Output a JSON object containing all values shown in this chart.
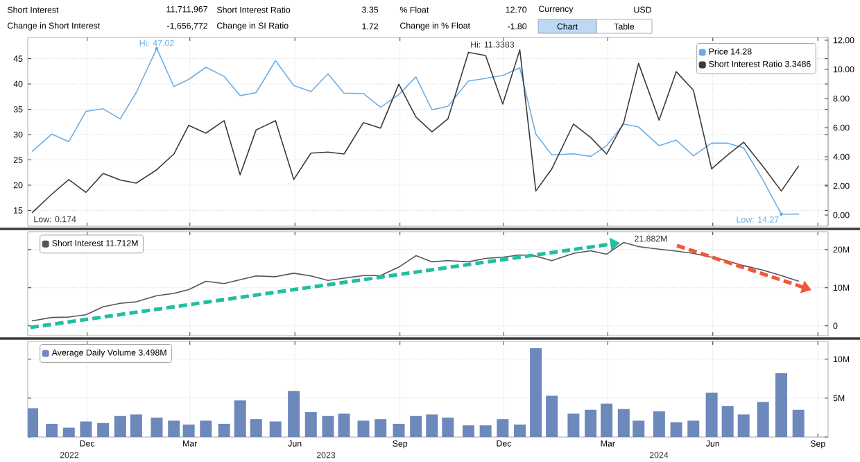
{
  "chart_data": [
    {
      "type": "other",
      "annotations": [
        "Short Interest",
        "11,711,967",
        "Short Interest Ratio",
        "3.35",
        "% Float",
        "12.70",
        "Currency",
        "USD",
        "Change in Short Interest",
        "-1,656,772",
        "Change in SI Ratio",
        "1.72",
        "Change in % Float",
        "-1.80",
        "Chart",
        "Table"
      ]
    },
    {
      "type": "line",
      "x": [
        "2022-10-14",
        "2022-10-31",
        "2022-11-15",
        "2022-11-30",
        "2022-12-15",
        "2022-12-30",
        "2023-01-13",
        "2023-01-31",
        "2023-02-15",
        "2023-02-28",
        "2023-03-15",
        "2023-03-31",
        "2023-04-14",
        "2023-04-28",
        "2023-05-15",
        "2023-05-31",
        "2023-06-15",
        "2023-06-30",
        "2023-07-14",
        "2023-07-31",
        "2023-08-15",
        "2023-08-31",
        "2023-09-15",
        "2023-09-29",
        "2023-10-13",
        "2023-10-31",
        "2023-11-15",
        "2023-11-30",
        "2023-12-15",
        "2023-12-29",
        "2024-01-12",
        "2024-01-31",
        "2024-02-15",
        "2024-02-29",
        "2024-03-15",
        "2024-03-28",
        "2024-04-15",
        "2024-04-30",
        "2024-05-15",
        "2024-05-31",
        "2024-06-14",
        "2024-06-28",
        "2024-07-15",
        "2024-07-31",
        "2024-08-15"
      ],
      "series": [
        {
          "name": "Price 14.28",
          "color": "#6aaee8",
          "values": [
            26.7,
            30.1,
            28.6,
            34.6,
            35.1,
            33.1,
            38.3,
            47.02,
            39.5,
            40.9,
            43.3,
            41.5,
            37.7,
            38.3,
            44.6,
            39.7,
            38.5,
            42.0,
            38.2,
            38.1,
            35.4,
            37.9,
            41.4,
            34.9,
            35.6,
            40.6,
            41.1,
            41.7,
            43.2,
            30.1,
            26.0,
            26.2,
            25.7,
            27.8,
            32.1,
            31.5,
            27.8,
            28.9,
            25.8,
            28.3,
            28.3,
            27.4,
            21.0,
            14.27,
            14.28
          ]
        },
        {
          "name": "Short Interest Ratio 3.3486",
          "color": "#3a3a3a",
          "axis": "y2",
          "values": [
            0.174,
            1.43,
            2.44,
            1.56,
            2.86,
            2.41,
            2.19,
            3.11,
            4.19,
            6.16,
            5.62,
            6.48,
            2.76,
            5.84,
            6.48,
            2.44,
            4.25,
            4.32,
            4.19,
            6.35,
            5.97,
            8.98,
            6.73,
            5.71,
            6.6,
            11.17,
            10.95,
            7.62,
            11.3383,
            1.65,
            3.17,
            6.25,
            5.33,
            4.19,
            6.35,
            10.41,
            6.51,
            9.84,
            8.57,
            3.17,
            4.13,
            5.0,
            3.33,
            1.65,
            3.3486
          ]
        }
      ],
      "xlim": [
        "2022-10-10",
        "2024-09-10"
      ],
      "xticks": [
        {
          "value": "2022-12-01",
          "label": null
        },
        {
          "value": "2023-03-01",
          "label": null
        },
        {
          "value": "2023-06-01",
          "label": null
        },
        {
          "value": "2023-09-01",
          "label": null
        },
        {
          "value": "2023-12-01",
          "label": null
        },
        {
          "value": "2024-03-01",
          "label": null
        },
        {
          "value": "2024-06-01",
          "label": null
        },
        {
          "value": "2024-09-01",
          "label": null
        }
      ],
      "ylim": [
        11.9,
        49.2
      ],
      "yticks": [
        15,
        20,
        25,
        30,
        35,
        40,
        45
      ],
      "y2lim": [
        -0.76,
        12.19
      ],
      "y2ticks": [
        {
          "value": 0,
          "label": "0.00"
        },
        {
          "value": 2,
          "label": "2.00"
        },
        {
          "value": 4,
          "label": "4.00"
        },
        {
          "value": 6,
          "label": "6.00"
        },
        {
          "value": 8,
          "label": "8.00"
        },
        {
          "value": 10,
          "label": "10.00"
        },
        {
          "value": 12,
          "label": "12.00"
        }
      ],
      "annotations": [
        {
          "text": "Hi: 47.02",
          "x": "2023-01-31",
          "y": 47.02
        },
        {
          "text": "Low: 14.27",
          "x": "2024-07-31",
          "y": 14.27
        },
        "Hi: 11.3383",
        "Low: 0.174"
      ],
      "grid": true,
      "legend": "top right",
      "tick_labels": "y"
    },
    {
      "type": "line",
      "x": [
        "2022-10-14",
        "2022-10-31",
        "2022-11-15",
        "2022-11-30",
        "2022-12-15",
        "2022-12-30",
        "2023-01-13",
        "2023-01-31",
        "2023-02-15",
        "2023-02-28",
        "2023-03-15",
        "2023-03-31",
        "2023-04-14",
        "2023-04-28",
        "2023-05-15",
        "2023-05-31",
        "2023-06-15",
        "2023-06-30",
        "2023-07-14",
        "2023-07-31",
        "2023-08-15",
        "2023-08-31",
        "2023-09-15",
        "2023-09-29",
        "2023-10-13",
        "2023-10-31",
        "2023-11-15",
        "2023-11-30",
        "2023-12-15",
        "2023-12-29",
        "2024-01-12",
        "2024-01-31",
        "2024-02-15",
        "2024-02-29",
        "2024-03-15",
        "2024-03-28",
        "2024-04-15",
        "2024-04-30",
        "2024-05-15",
        "2024-05-31",
        "2024-06-14",
        "2024-06-28",
        "2024-07-15",
        "2024-07-31",
        "2024-08-15"
      ],
      "series": [
        {
          "name": "Short Interest 11.712M",
          "color": "#555555",
          "axis": "y2",
          "values": [
            1.3,
            2.2,
            2.3,
            2.9,
            5.0,
            5.9,
            6.3,
            7.9,
            8.5,
            9.5,
            11.7,
            11.1,
            12.1,
            13.1,
            12.9,
            13.8,
            13.1,
            11.9,
            12.5,
            13.2,
            13.2,
            15.4,
            18.4,
            16.8,
            17.1,
            16.8,
            17.7,
            18.0,
            18.6,
            18.3,
            17.1,
            19.0,
            19.7,
            18.8,
            21.882,
            20.8,
            20.1,
            19.6,
            19.0,
            18.0,
            17.0,
            15.8,
            14.6,
            13.2,
            11.712
          ]
        }
      ],
      "xlim": [
        "2022-10-10",
        "2024-09-10"
      ],
      "xticks": [
        {
          "value": "2022-12-01",
          "label": null
        },
        {
          "value": "2023-03-01",
          "label": null
        },
        {
          "value": "2023-06-01",
          "label": null
        },
        {
          "value": "2023-09-01",
          "label": null
        },
        {
          "value": "2023-12-01",
          "label": null
        },
        {
          "value": "2024-03-01",
          "label": null
        },
        {
          "value": "2024-06-01",
          "label": null
        },
        {
          "value": "2024-09-01",
          "label": null
        }
      ],
      "y2lim": [
        -2.6,
        24.7
      ],
      "y2ticks": [
        0,
        {
          "value": 10,
          "label": "10M"
        },
        {
          "value": 20,
          "label": "20M"
        }
      ],
      "annotations": [
        "21.882M"
      ],
      "grid": true,
      "legend": "top left",
      "tick_labels": "y"
    },
    {
      "type": "bar",
      "x": [
        "2022-10-14",
        "2022-10-31",
        "2022-11-15",
        "2022-11-30",
        "2022-12-15",
        "2022-12-30",
        "2023-01-13",
        "2023-01-31",
        "2023-02-15",
        "2023-02-28",
        "2023-03-15",
        "2023-03-31",
        "2023-04-14",
        "2023-04-28",
        "2023-05-15",
        "2023-05-31",
        "2023-06-15",
        "2023-06-30",
        "2023-07-14",
        "2023-07-31",
        "2023-08-15",
        "2023-08-31",
        "2023-09-15",
        "2023-09-29",
        "2023-10-13",
        "2023-10-31",
        "2023-11-15",
        "2023-11-30",
        "2023-12-15",
        "2023-12-29",
        "2024-01-12",
        "2024-01-31",
        "2024-02-15",
        "2024-02-29",
        "2024-03-15",
        "2024-03-28",
        "2024-04-15",
        "2024-04-30",
        "2024-05-15",
        "2024-05-31",
        "2024-06-14",
        "2024-06-28",
        "2024-07-15",
        "2024-07-31",
        "2024-08-15"
      ],
      "series": [
        {
          "name": "Average Daily Volume 3.498M",
          "color": "#6d88ba",
          "axis": "y2",
          "values": [
            3.7,
            1.7,
            1.2,
            2.0,
            1.8,
            2.7,
            2.9,
            2.5,
            2.1,
            1.6,
            2.1,
            1.7,
            4.7,
            2.3,
            2.0,
            5.9,
            3.2,
            2.7,
            3.0,
            2.1,
            2.3,
            1.7,
            2.7,
            2.9,
            2.5,
            1.5,
            1.5,
            2.3,
            1.6,
            11.4,
            5.3,
            3.0,
            3.5,
            4.3,
            3.6,
            2.1,
            3.3,
            1.9,
            2.1,
            5.7,
            4.0,
            2.9,
            4.5,
            8.2,
            3.498
          ]
        }
      ],
      "xlim": [
        "2022-10-10",
        "2024-09-10"
      ],
      "xticks": [
        {
          "value": "2022-12-01",
          "label": "Dec"
        },
        {
          "value": "2023-03-01",
          "label": "Mar"
        },
        {
          "value": "2023-06-01",
          "label": "Jun"
        },
        {
          "value": "2023-09-01",
          "label": "Sep"
        },
        {
          "value": "2023-12-01",
          "label": "Dec"
        },
        {
          "value": "2024-03-01",
          "label": "Mar"
        },
        {
          "value": "2024-06-01",
          "label": "Jun"
        },
        {
          "value": "2024-09-01",
          "label": "Sep"
        }
      ],
      "annotations": [
        "2022",
        "2023",
        "2024"
      ],
      "y2lim": [
        0,
        12.3
      ],
      "y2ticks": [
        {
          "value": 0,
          "label": null
        },
        {
          "value": 5,
          "label": "5M"
        },
        {
          "value": 10,
          "label": "10M"
        }
      ],
      "grid": true,
      "legend": "top left"
    }
  ]
}
